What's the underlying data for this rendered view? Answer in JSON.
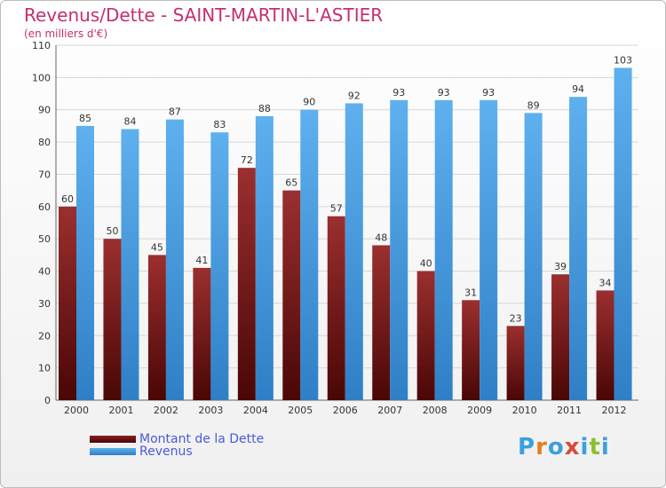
{
  "header": {
    "title": "Revenus/Dette - SAINT-MARTIN-L'ASTIER",
    "subtitle": "(en milliers d'€)"
  },
  "chart_data": {
    "type": "bar",
    "categories": [
      "2000",
      "2001",
      "2002",
      "2003",
      "2004",
      "2005",
      "2006",
      "2007",
      "2008",
      "2009",
      "2010",
      "2011",
      "2012"
    ],
    "series": [
      {
        "name": "Montant de la Dette",
        "color": "#7a1a1a",
        "values": [
          60,
          50,
          45,
          41,
          72,
          65,
          57,
          48,
          40,
          31,
          23,
          39,
          34
        ]
      },
      {
        "name": "Revenus",
        "color": "#4da3e6",
        "values": [
          85,
          84,
          87,
          83,
          88,
          90,
          92,
          93,
          93,
          93,
          89,
          94,
          103
        ]
      }
    ],
    "ylim": [
      0,
      110
    ],
    "yticks": [
      0,
      10,
      20,
      30,
      40,
      50,
      60,
      70,
      80,
      90,
      100,
      110
    ],
    "grid": true,
    "legend_position": "bottom-left"
  },
  "legend": {
    "items": [
      {
        "label": "Montant de la Dette",
        "color": "#6b1010"
      },
      {
        "label": "Revenus",
        "color": "#4da3e6"
      }
    ]
  },
  "brand": {
    "letters": [
      "P",
      "r",
      "o",
      "x",
      "i",
      "t",
      "i"
    ],
    "colors": [
      "#3aa0e0",
      "#e0801f",
      "#3aa0e0",
      "#d94a3a",
      "#3aa0e0",
      "#8bbf2f",
      "#3aa0e0"
    ]
  }
}
